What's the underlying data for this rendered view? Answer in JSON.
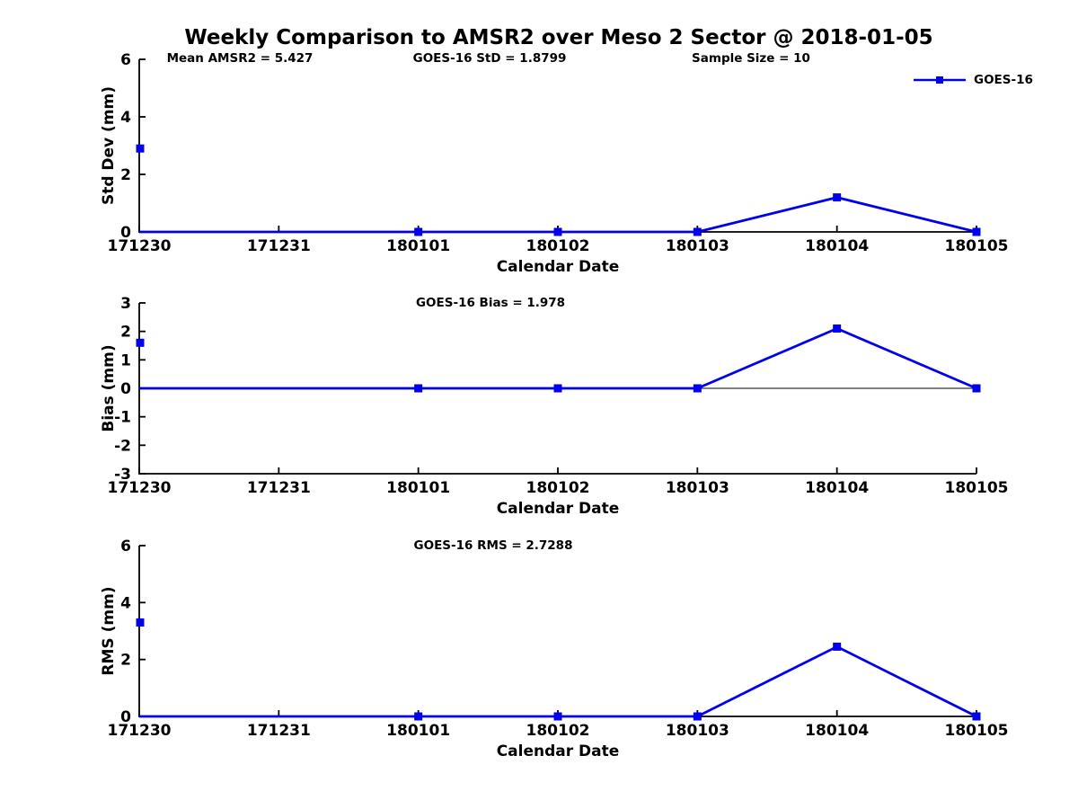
{
  "title": "Weekly Comparison to AMSR2 over Meso 2 Sector @ 2018-01-05",
  "legend": {
    "label": "GOES-16"
  },
  "colors": {
    "series": "#0000ee",
    "axis": "#000000",
    "background": "#ffffff"
  },
  "x_axis": {
    "label": "Calendar Date",
    "categories": [
      "171230",
      "171231",
      "180101",
      "180102",
      "180103",
      "180104",
      "180105"
    ]
  },
  "chart_data": [
    {
      "type": "line",
      "panel": "std-dev",
      "ylabel": "Std Dev (mm)",
      "ylim": [
        0,
        6
      ],
      "yticks": [
        0,
        2,
        4,
        6
      ],
      "zero_line": false,
      "grid": false,
      "legend_position": "top-right",
      "annotations": [
        {
          "text": "Mean AMSR2 = 5.427"
        },
        {
          "text": "GOES-16 StD = 1.8799"
        },
        {
          "text": "Sample Size = 10"
        }
      ],
      "series": [
        {
          "name": "GOES-16",
          "points": [
            {
              "x": "171230",
              "y": 0,
              "marker": false
            },
            {
              "x": "180101",
              "y": 0,
              "marker": true
            },
            {
              "x": "180102",
              "y": 0,
              "marker": true
            },
            {
              "x": "180103",
              "y": 0,
              "marker": true
            },
            {
              "x": "180104",
              "y": 1.2,
              "marker": true
            },
            {
              "x": "180105",
              "y": 0,
              "marker": true
            }
          ]
        }
      ],
      "isolated_points": [
        {
          "x": "171230",
          "y": 2.9
        }
      ]
    },
    {
      "type": "line",
      "panel": "bias",
      "ylabel": "Bias (mm)",
      "ylim": [
        -3,
        3
      ],
      "yticks": [
        3,
        2,
        1,
        0,
        -1,
        -2,
        -3
      ],
      "zero_line": true,
      "grid": false,
      "annotations": [
        {
          "text": "GOES-16 Bias  = 1.978"
        }
      ],
      "series": [
        {
          "name": "GOES-16",
          "points": [
            {
              "x": "171230",
              "y": 0,
              "marker": false
            },
            {
              "x": "180101",
              "y": 0,
              "marker": true
            },
            {
              "x": "180102",
              "y": 0,
              "marker": true
            },
            {
              "x": "180103",
              "y": 0,
              "marker": true
            },
            {
              "x": "180104",
              "y": 2.1,
              "marker": true
            },
            {
              "x": "180105",
              "y": 0,
              "marker": true
            }
          ]
        }
      ],
      "isolated_points": [
        {
          "x": "171230",
          "y": 1.6
        }
      ]
    },
    {
      "type": "line",
      "panel": "rms",
      "ylabel": "RMS (mm)",
      "ylim": [
        0,
        6
      ],
      "yticks": [
        0,
        2,
        4,
        6
      ],
      "zero_line": false,
      "grid": false,
      "annotations": [
        {
          "text": "GOES-16 RMS = 2.7288"
        }
      ],
      "series": [
        {
          "name": "GOES-16",
          "points": [
            {
              "x": "171230",
              "y": 0,
              "marker": false
            },
            {
              "x": "180101",
              "y": 0,
              "marker": true
            },
            {
              "x": "180102",
              "y": 0,
              "marker": true
            },
            {
              "x": "180103",
              "y": 0,
              "marker": true
            },
            {
              "x": "180104",
              "y": 2.45,
              "marker": true
            },
            {
              "x": "180105",
              "y": 0,
              "marker": true
            }
          ]
        }
      ],
      "isolated_points": [
        {
          "x": "171230",
          "y": 3.3
        }
      ]
    }
  ]
}
